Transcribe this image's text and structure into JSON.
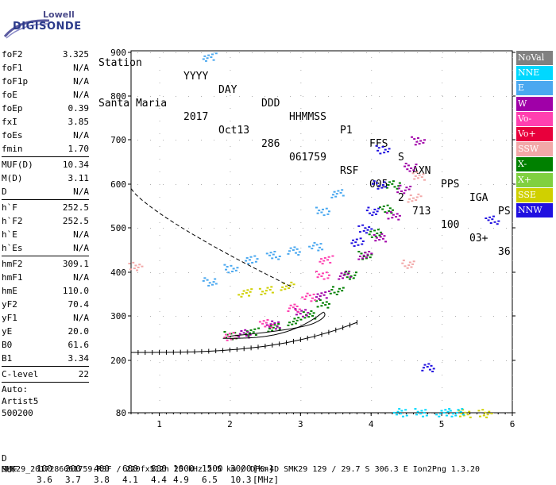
{
  "logo": {
    "line1": "Lowell",
    "line2": "DIGISONDE"
  },
  "header": {
    "labels": [
      "Station",
      "YYYY",
      "DAY",
      "DDD",
      "HHMMSS",
      "P1",
      "FFS",
      "S",
      "AXN",
      "PPS",
      "IGA",
      "PS"
    ],
    "values": [
      "Santa Maria",
      "2017",
      "Oct13",
      "286",
      "061759",
      "RSF",
      "005",
      "2",
      "713",
      "100",
      "03+",
      "36"
    ]
  },
  "params": [
    {
      "group": [
        {
          "name": "foF2",
          "value": "3.325"
        },
        {
          "name": "foF1",
          "value": "N/A"
        },
        {
          "name": "foF1p",
          "value": "N/A"
        },
        {
          "name": "foE",
          "value": "N/A"
        },
        {
          "name": "foEp",
          "value": "0.39"
        },
        {
          "name": "fxI",
          "value": "3.85"
        },
        {
          "name": "foEs",
          "value": "N/A"
        },
        {
          "name": "fmin",
          "value": "1.70"
        }
      ]
    },
    {
      "group": [
        {
          "name": "MUF(D)",
          "value": "10.34"
        },
        {
          "name": "M(D)",
          "value": "3.11"
        },
        {
          "name": "D",
          "value": "N/A"
        }
      ]
    },
    {
      "group": [
        {
          "name": "h`F",
          "value": "252.5"
        },
        {
          "name": "h`F2",
          "value": "252.5"
        },
        {
          "name": "h`E",
          "value": "N/A"
        },
        {
          "name": "h`Es",
          "value": "N/A"
        }
      ]
    },
    {
      "group": [
        {
          "name": "hmF2",
          "value": "309.1"
        },
        {
          "name": "hmF1",
          "value": "N/A"
        },
        {
          "name": "hmE",
          "value": "110.0"
        },
        {
          "name": "yF2",
          "value": "70.4"
        },
        {
          "name": "yF1",
          "value": "N/A"
        },
        {
          "name": "yE",
          "value": "20.0"
        },
        {
          "name": "B0",
          "value": "61.6"
        },
        {
          "name": "B1",
          "value": "3.34"
        }
      ]
    },
    {
      "group": [
        {
          "name": "C-level",
          "value": "22"
        }
      ]
    }
  ],
  "auto": {
    "line1": "Auto:",
    "line2": "Artist5",
    "line3": "500200"
  },
  "bottom": {
    "d_label": "D",
    "d_values": [
      "100",
      "200",
      "400",
      "600",
      "800",
      "1000",
      "1500",
      "3000"
    ],
    "d_unit": "[km]",
    "muf_label": "MUF",
    "muf_values": [
      "3.6",
      "3.7",
      "3.8",
      "4.1",
      "4.4",
      "4.9",
      "6.5",
      "10.3"
    ],
    "muf_unit": "[MHz]",
    "footer": "SMK29_2017286061759.RSF / 220fx512h 25 kHz 2.5 km / DPS-4D SMK29 129 / 29.7 S 306.3 E Ion2Png 1.3.20"
  },
  "legend": [
    {
      "label": "NoVal",
      "color": "#808080"
    },
    {
      "label": "NNE",
      "color": "#00d8ff"
    },
    {
      "label": "E",
      "color": "#4aa8f0"
    },
    {
      "label": "W",
      "color": "#a000a8"
    },
    {
      "label": "Vo-",
      "color": "#ff40b0"
    },
    {
      "label": "Vo+",
      "color": "#e8003c"
    },
    {
      "label": "SSW",
      "color": "#f2a8a8"
    },
    {
      "label": "X-",
      "color": "#008000"
    },
    {
      "label": "X+",
      "color": "#80d040"
    },
    {
      "label": "SSE",
      "color": "#d0d000"
    },
    {
      "label": "NNW",
      "color": "#2010e0"
    }
  ],
  "chart_data": {
    "type": "scatter",
    "x_ticks": [
      "1",
      "2",
      "3",
      "4",
      "5",
      "6"
    ],
    "y_ticks": [
      "900",
      "800",
      "700",
      "600",
      "500",
      "400",
      "300",
      "200",
      "80"
    ],
    "xlim": [
      0.6,
      6.0
    ],
    "ylim": [
      80,
      900
    ],
    "series": [
      {
        "name": "X-",
        "color": "#008000",
        "points": [
          [
            2.0,
            258
          ],
          [
            2.3,
            266
          ],
          [
            2.6,
            276
          ],
          [
            2.9,
            290
          ],
          [
            3.1,
            305
          ],
          [
            3.3,
            330
          ],
          [
            3.5,
            360
          ],
          [
            3.7,
            395
          ],
          [
            3.9,
            440
          ],
          [
            4.05,
            490
          ],
          [
            4.2,
            545
          ],
          [
            4.3,
            600
          ]
        ]
      },
      {
        "name": "W",
        "color": "#a000a8",
        "points": [
          [
            2.2,
            262
          ],
          [
            2.6,
            282
          ],
          [
            3.0,
            310
          ],
          [
            3.3,
            350
          ],
          [
            3.6,
            395
          ],
          [
            3.9,
            440
          ],
          [
            4.1,
            480
          ],
          [
            4.3,
            530
          ],
          [
            4.45,
            590
          ],
          [
            4.55,
            640
          ],
          [
            4.65,
            700
          ]
        ]
      },
      {
        "name": "Vo-",
        "color": "#ff40b0",
        "points": [
          [
            2.0,
            256
          ],
          [
            2.5,
            285
          ],
          [
            2.9,
            320
          ],
          [
            3.1,
            345
          ],
          [
            3.3,
            395
          ],
          [
            3.35,
            430
          ]
        ]
      },
      {
        "name": "E",
        "color": "#4aa8f0",
        "points": [
          [
            1.7,
            380
          ],
          [
            2.0,
            410
          ],
          [
            2.3,
            430
          ],
          [
            2.6,
            440
          ],
          [
            2.9,
            450
          ],
          [
            3.2,
            460
          ],
          [
            3.3,
            540
          ],
          [
            1.7,
            890
          ],
          [
            3.5,
            580
          ]
        ]
      },
      {
        "name": "NNW",
        "color": "#2010e0",
        "points": [
          [
            3.9,
            500
          ],
          [
            4.0,
            540
          ],
          [
            4.1,
            600
          ],
          [
            4.15,
            680
          ],
          [
            3.8,
            470
          ],
          [
            5.7,
            520
          ],
          [
            4.8,
            185
          ]
        ]
      },
      {
        "name": "SSW",
        "color": "#f2a8a8",
        "points": [
          [
            4.6,
            570
          ],
          [
            4.65,
            620
          ],
          [
            0.65,
            415
          ],
          [
            4.5,
            420
          ]
        ]
      },
      {
        "name": "SSE",
        "color": "#d0d000",
        "points": [
          [
            2.2,
            355
          ],
          [
            2.5,
            360
          ],
          [
            2.8,
            370
          ],
          [
            5.3,
            80
          ],
          [
            5.6,
            80
          ]
        ]
      },
      {
        "name": "NNE",
        "color": "#00d8ff",
        "points": [
          [
            4.4,
            82
          ],
          [
            4.7,
            82
          ],
          [
            5.0,
            82
          ],
          [
            5.2,
            82
          ]
        ]
      }
    ]
  }
}
